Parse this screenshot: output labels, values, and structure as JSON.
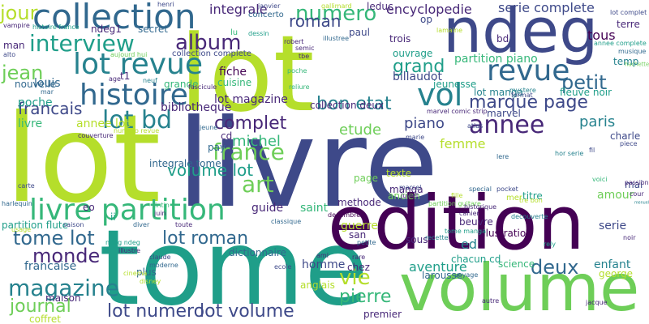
{
  "palette": {
    "dark_purple": "#440154",
    "indigo": "#482878",
    "blue": "#3e4989",
    "slate_blue": "#31688e",
    "teal": "#26828e",
    "sea_green": "#1f9e89",
    "green": "#35b779",
    "light_green": "#6ece58",
    "lime": "#b5de2b",
    "yellow": "#fde725"
  },
  "words": [
    {
      "text": "lot",
      "color": "lime"
    },
    {
      "text": "livre",
      "color": "blue"
    },
    {
      "text": "tome",
      "color": "sea_green"
    },
    {
      "text": "edition",
      "color": "dark_purple"
    },
    {
      "text": "volume",
      "color": "light_green"
    },
    {
      "text": "ndeg",
      "color": "blue"
    },
    {
      "text": "collection",
      "color": "slate_blue"
    },
    {
      "text": "lot revue",
      "color": "teal"
    },
    {
      "text": "histoire",
      "color": "slate_blue"
    },
    {
      "text": "livre partition",
      "color": "green"
    },
    {
      "text": "annee",
      "color": "indigo"
    },
    {
      "text": "revue",
      "color": "slate_blue"
    },
    {
      "text": "vol",
      "color": "teal"
    },
    {
      "text": "interview",
      "color": "sea_green"
    },
    {
      "text": "album",
      "color": "indigo"
    },
    {
      "text": "lot bd",
      "color": "teal"
    },
    {
      "text": "france",
      "color": "light_green"
    },
    {
      "text": "art",
      "color": "light_green"
    },
    {
      "text": "numero",
      "color": "green"
    },
    {
      "text": "jour",
      "color": "lime"
    },
    {
      "text": "grand",
      "color": "sea_green"
    },
    {
      "text": "petit",
      "color": "slate_blue"
    },
    {
      "text": "marque page",
      "color": "blue"
    },
    {
      "text": "bon etat",
      "color": "teal"
    },
    {
      "text": "jean",
      "color": "light_green"
    },
    {
      "text": "complet",
      "color": "indigo"
    },
    {
      "text": "volume lot",
      "color": "sea_green"
    },
    {
      "text": "roman",
      "color": "blue"
    },
    {
      "text": "monde",
      "color": "indigo"
    },
    {
      "text": "tome lot",
      "color": "slate_blue"
    },
    {
      "text": "lot roman",
      "color": "slate_blue"
    },
    {
      "text": "magazine",
      "color": "teal"
    },
    {
      "text": "journal",
      "color": "light_green"
    },
    {
      "text": "lot numero",
      "color": "blue"
    },
    {
      "text": "lot volume",
      "color": "blue"
    },
    {
      "text": "vie",
      "color": "lime"
    },
    {
      "text": "pierre",
      "color": "green"
    },
    {
      "text": "deux",
      "color": "slate_blue"
    },
    {
      "text": "aventure",
      "color": "sea_green"
    },
    {
      "text": "femme",
      "color": "lime"
    },
    {
      "text": "paris",
      "color": "teal"
    },
    {
      "text": "piano",
      "color": "blue"
    },
    {
      "text": "michel",
      "color": "green"
    },
    {
      "text": "francais",
      "color": "blue"
    },
    {
      "text": "etude",
      "color": "light_green"
    },
    {
      "text": "integrale",
      "color": "indigo"
    },
    {
      "text": "encyclopedie",
      "color": "indigo"
    },
    {
      "text": "serie complete",
      "color": "blue"
    },
    {
      "text": "lot magazine",
      "color": "indigo"
    },
    {
      "text": "fiche",
      "color": "dark_purple"
    },
    {
      "text": "bibliotheque",
      "color": "indigo"
    },
    {
      "text": "louis",
      "color": "slate_blue"
    },
    {
      "text": "partition piano",
      "color": "green"
    },
    {
      "text": "jeunesse",
      "color": "sea_green"
    },
    {
      "text": "billaudot",
      "color": "blue"
    },
    {
      "text": "tous",
      "color": "dark_purple"
    },
    {
      "text": "hachette",
      "color": "light_green"
    },
    {
      "text": "fleuve noir",
      "color": "sea_green"
    },
    {
      "text": "nouvelle",
      "color": "slate_blue"
    },
    {
      "text": "ouvrage",
      "color": "sea_green"
    },
    {
      "text": "lot manga",
      "color": "teal"
    },
    {
      "text": "marvel",
      "color": "blue"
    },
    {
      "text": "manga",
      "color": "indigo"
    },
    {
      "text": "methode",
      "color": "indigo"
    },
    {
      "text": "ancien",
      "color": "light_green"
    },
    {
      "text": "guerre",
      "color": "lime"
    },
    {
      "text": "titre",
      "color": "sea_green"
    },
    {
      "text": "amour",
      "color": "light_green"
    },
    {
      "text": "serie",
      "color": "blue"
    },
    {
      "text": "illustration",
      "color": "dark_purple"
    },
    {
      "text": "beuvre",
      "color": "indigo"
    },
    {
      "text": "science",
      "color": "green"
    },
    {
      "text": "enfant",
      "color": "teal"
    },
    {
      "text": "george",
      "color": "lime"
    },
    {
      "text": "chacun cd",
      "color": "sea_green"
    },
    {
      "text": "ed",
      "color": "teal"
    },
    {
      "text": "guide",
      "color": "indigo"
    },
    {
      "text": "saint",
      "color": "green"
    },
    {
      "text": "homme",
      "color": "blue"
    },
    {
      "text": "dictionnaire",
      "color": "slate_blue"
    },
    {
      "text": "francaise",
      "color": "slate_blue"
    },
    {
      "text": "plus",
      "color": "slate_blue"
    },
    {
      "text": "maison",
      "color": "indigo"
    },
    {
      "text": "coffret",
      "color": "lime"
    },
    {
      "text": "chez",
      "color": "indigo"
    },
    {
      "text": "anglais",
      "color": "lime"
    },
    {
      "text": "larousse",
      "color": "slate_blue"
    },
    {
      "text": "premier",
      "color": "indigo"
    },
    {
      "text": "page",
      "color": "light_green"
    },
    {
      "text": "texte",
      "color": "lime"
    },
    {
      "text": "cd",
      "color": "indigo"
    },
    {
      "text": "ii",
      "color": "sea_green"
    },
    {
      "text": "eo",
      "color": "indigo"
    },
    {
      "text": "cuisine",
      "color": "green"
    },
    {
      "text": "grande",
      "color": "green"
    },
    {
      "text": "ndeg1",
      "color": "indigo"
    },
    {
      "text": "secret",
      "color": "slate_blue"
    },
    {
      "text": "t1",
      "color": "indigo"
    },
    {
      "text": "man",
      "color": "indigo"
    },
    {
      "text": "poche",
      "color": "sea_green"
    },
    {
      "text": "livre",
      "color": "green"
    },
    {
      "text": "annee lot",
      "color": "lime"
    },
    {
      "text": "integrale tome",
      "color": "slate_blue"
    },
    {
      "text": "partition flute",
      "color": "sea_green"
    },
    {
      "text": "collection deux",
      "color": "indigo"
    },
    {
      "text": "op",
      "color": "blue"
    },
    {
      "text": "bd",
      "color": "indigo"
    },
    {
      "text": "trois",
      "color": "indigo"
    },
    {
      "text": "leduc",
      "color": "indigo"
    },
    {
      "text": "paul",
      "color": "blue"
    },
    {
      "text": "concerto",
      "color": "slate_blue"
    },
    {
      "text": "collection complete",
      "color": "blue"
    },
    {
      "text": "lu",
      "color": "green"
    },
    {
      "text": "temp",
      "color": "teal"
    },
    {
      "text": "mai",
      "color": "blue"
    },
    {
      "text": "charle",
      "color": "blue"
    },
    {
      "text": "pay",
      "color": "slate_blue"
    },
    {
      "text": "jeune",
      "color": "slate_blue"
    },
    {
      "text": "alto",
      "color": "blue"
    },
    {
      "text": "mar",
      "color": "slate_blue"
    },
    {
      "text": "age",
      "color": "indigo"
    },
    {
      "text": "neuf",
      "color": "teal"
    },
    {
      "text": "fascicule",
      "color": "indigo"
    },
    {
      "text": "reliure",
      "color": "green"
    },
    {
      "text": "tbe",
      "color": "indigo"
    },
    {
      "text": "robert",
      "color": "indigo"
    },
    {
      "text": "semic",
      "color": "indigo"
    },
    {
      "text": "illustree",
      "color": "slate_blue"
    },
    {
      "text": "dessin",
      "color": "sea_green"
    },
    {
      "text": "poche",
      "color": "green"
    },
    {
      "text": "marvel comic strip",
      "color": "indigo"
    },
    {
      "text": "mystere",
      "color": "teal"
    },
    {
      "text": "format",
      "color": "blue"
    },
    {
      "text": "vampire",
      "color": "indigo"
    },
    {
      "text": "histoire france",
      "color": "sea_green"
    },
    {
      "text": "aujourd hui",
      "color": "light_green"
    },
    {
      "text": "henri",
      "color": "blue"
    },
    {
      "text": "janvier",
      "color": "blue"
    },
    {
      "text": "gallimard",
      "color": "lime"
    },
    {
      "text": "lamaine",
      "color": "lime"
    },
    {
      "text": "terre",
      "color": "indigo"
    },
    {
      "text": "annee complete",
      "color": "sea_green"
    },
    {
      "text": "musique",
      "color": "slate_blue"
    },
    {
      "text": "lot complet",
      "color": "blue"
    },
    {
      "text": "hor serie",
      "color": "teal"
    },
    {
      "text": "fil",
      "color": "blue"
    },
    {
      "text": "piece",
      "color": "blue"
    },
    {
      "text": "passion",
      "color": "indigo"
    },
    {
      "text": "voici",
      "color": "green"
    },
    {
      "text": "noir",
      "color": "indigo"
    },
    {
      "text": "cour",
      "color": "indigo"
    },
    {
      "text": "menuel",
      "color": "teal"
    },
    {
      "text": "rely",
      "color": "sea_green"
    },
    {
      "text": "decembre",
      "color": "dark_purple"
    },
    {
      "text": "saison",
      "color": "blue"
    },
    {
      "text": "harlequin",
      "color": "slate_blue"
    },
    {
      "text": "diver",
      "color": "slate_blue"
    },
    {
      "text": "toute",
      "color": "indigo"
    },
    {
      "text": "tintin",
      "color": "green"
    },
    {
      "text": "juin",
      "color": "indigo"
    },
    {
      "text": "usage",
      "color": "lime"
    },
    {
      "text": "ndeg ndeg",
      "color": "sea_green"
    },
    {
      "text": "illustre",
      "color": "indigo"
    },
    {
      "text": "claude",
      "color": "blue"
    },
    {
      "text": "moderne",
      "color": "slate_blue"
    },
    {
      "text": "ecole",
      "color": "blue"
    },
    {
      "text": "disney",
      "color": "lime"
    },
    {
      "text": "cinema",
      "color": "lime"
    },
    {
      "text": "ami",
      "color": "indigo"
    },
    {
      "text": "rare",
      "color": "indigo"
    },
    {
      "text": "san",
      "color": "indigo"
    },
    {
      "text": "sous",
      "color": "indigo"
    },
    {
      "text": "petite",
      "color": "slate_blue"
    },
    {
      "text": "recette",
      "color": "teal"
    },
    {
      "text": "voyage",
      "color": "slate_blue"
    },
    {
      "text": "tome manga",
      "color": "sea_green"
    },
    {
      "text": "partition guitare",
      "color": "light_green"
    },
    {
      "text": "cahier",
      "color": "indigo"
    },
    {
      "text": "autre",
      "color": "indigo"
    },
    {
      "text": "jacque",
      "color": "indigo"
    },
    {
      "text": "pocket",
      "color": "blue"
    },
    {
      "text": "historique",
      "color": "indigo"
    },
    {
      "text": "special",
      "color": "slate_blue"
    },
    {
      "text": "fille",
      "color": "lime"
    },
    {
      "text": "juillet",
      "color": "indigo"
    },
    {
      "text": "marcel",
      "color": "blue"
    },
    {
      "text": "classique",
      "color": "slate_blue"
    },
    {
      "text": "carte",
      "color": "blue"
    },
    {
      "text": "couverture",
      "color": "indigo"
    },
    {
      "text": "numero revue",
      "color": "lime"
    },
    {
      "text": "marie",
      "color": "blue"
    },
    {
      "text": "atlas",
      "color": "blue"
    },
    {
      "text": "lere",
      "color": "slate_blue"
    },
    {
      "text": "tre bon",
      "color": "lime"
    },
    {
      "text": "decouverte",
      "color": "teal"
    },
    {
      "text": "mer",
      "color": "lime"
    }
  ]
}
